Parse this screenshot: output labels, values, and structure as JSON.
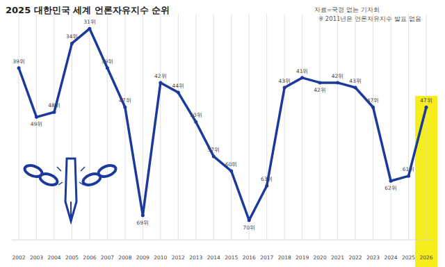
{
  "chart_data": {
    "type": "line",
    "title": "2025 대한민국 세계 언론자유지수 순위",
    "source": "자료=국경 없는 기자회",
    "note": "※ 2011년은 언론자유지수 발표 없음",
    "categories": [
      "2002",
      "2003",
      "2004",
      "2005",
      "2006",
      "2007",
      "2008",
      "2009",
      "2010",
      "2012",
      "2013",
      "2014",
      "2015",
      "2016",
      "2017",
      "2018",
      "2019",
      "2020",
      "2021",
      "2022",
      "2023",
      "2024",
      "2025",
      "2026"
    ],
    "values": [
      39,
      49,
      48,
      34,
      31,
      39,
      47,
      69,
      42,
      44,
      50,
      57,
      60,
      70,
      63,
      43,
      41,
      42,
      42,
      43,
      47,
      62,
      61,
      47
    ],
    "value_labels": [
      "39위",
      "49위",
      "48위",
      "34위",
      "31위",
      "39위",
      "47위",
      "69위",
      "42위",
      "44위",
      "50위",
      "57위",
      "60위",
      "70위",
      "63위",
      "43위",
      "41위",
      "42위",
      "42위",
      "43위",
      "47위",
      "62위",
      "61위",
      "47위"
    ],
    "color": "#1c3a9c",
    "marker": "circle",
    "ylim": [
      74,
      28
    ],
    "grid": true,
    "data_labels": true,
    "tick_labels": "x"
  }
}
